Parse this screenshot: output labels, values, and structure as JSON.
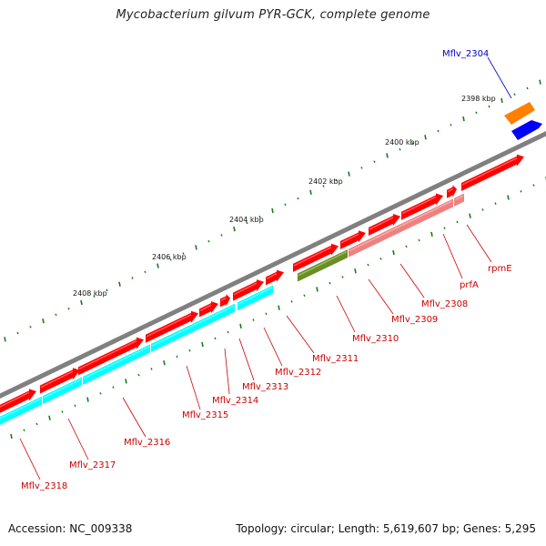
{
  "header": {
    "title": "Mycobacterium gilvum PYR-GCK, complete genome"
  },
  "footer": {
    "accession": "Accession: NC_009338",
    "topology": "Topology: circular; Length: 5,619,607 bp; Genes: 5,295"
  },
  "coordinate_labels": [
    "2398 kbp",
    "2400 kbp",
    "2402 kbp",
    "2404 kbp",
    "2406 kbp",
    "2408 kbp"
  ],
  "gene_labels": [
    {
      "text": "Mflv_2304",
      "color": "#0000cc"
    },
    {
      "text": "rpmE",
      "color": "#cc0000"
    },
    {
      "text": "prfA",
      "color": "#cc0000"
    },
    {
      "text": "Mflv_2308",
      "color": "#cc0000"
    },
    {
      "text": "Mflv_2309",
      "color": "#cc0000"
    },
    {
      "text": "Mflv_2310",
      "color": "#cc0000"
    },
    {
      "text": "Mflv_2311",
      "color": "#cc0000"
    },
    {
      "text": "Mflv_2312",
      "color": "#cc0000"
    },
    {
      "text": "Mflv_2313",
      "color": "#cc0000"
    },
    {
      "text": "Mflv_2314",
      "color": "#cc0000"
    },
    {
      "text": "Mflv_2315",
      "color": "#cc0000"
    },
    {
      "text": "Mflv_2316",
      "color": "#cc0000"
    },
    {
      "text": "Mflv_2317",
      "color": "#cc0000"
    },
    {
      "text": "Mflv_2318",
      "color": "#cc0000"
    }
  ],
  "colors": {
    "backbone": "#808080",
    "cds_forward": "#ff0000",
    "cds_reverse": "#00ffff",
    "rrna_misc": "#ff8000",
    "gene_blue": "#0000ff",
    "olive_feature": "#6b8e23",
    "pink_feature": "#f08080",
    "tick": "#1a7a1a",
    "label_red": "#cc0000",
    "label_blue": "#0000cc"
  }
}
